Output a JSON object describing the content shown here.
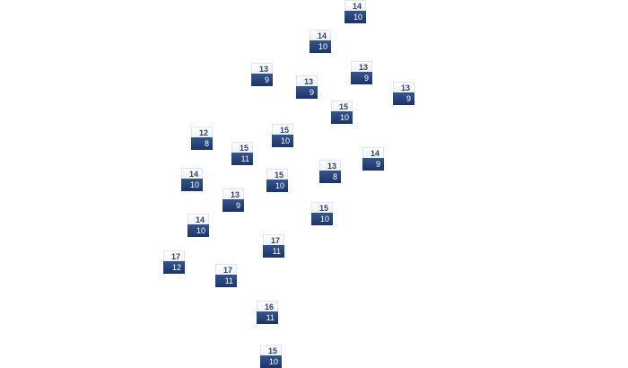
{
  "markers": [
    {
      "top": "14",
      "bottom": "10"
    },
    {
      "top": "14",
      "bottom": "10"
    },
    {
      "top": "13",
      "bottom": "9"
    },
    {
      "top": "13",
      "bottom": "9"
    },
    {
      "top": "13",
      "bottom": "9"
    },
    {
      "top": "13",
      "bottom": "9"
    },
    {
      "top": "15",
      "bottom": "10"
    },
    {
      "top": "15",
      "bottom": "10"
    },
    {
      "top": "12",
      "bottom": "8"
    },
    {
      "top": "15",
      "bottom": "11"
    },
    {
      "top": "14",
      "bottom": "9"
    },
    {
      "top": "13",
      "bottom": "8"
    },
    {
      "top": "14",
      "bottom": "10"
    },
    {
      "top": "15",
      "bottom": "10"
    },
    {
      "top": "13",
      "bottom": "9"
    },
    {
      "top": "15",
      "bottom": "10"
    },
    {
      "top": "14",
      "bottom": "10"
    },
    {
      "top": "17",
      "bottom": "11"
    },
    {
      "top": "17",
      "bottom": "12"
    },
    {
      "top": "17",
      "bottom": "11"
    },
    {
      "top": "16",
      "bottom": "11"
    },
    {
      "top": "15",
      "bottom": "10"
    }
  ],
  "colors": {
    "label_top_text": "#2c4377",
    "label_bottom_bg": "#1c3468"
  }
}
